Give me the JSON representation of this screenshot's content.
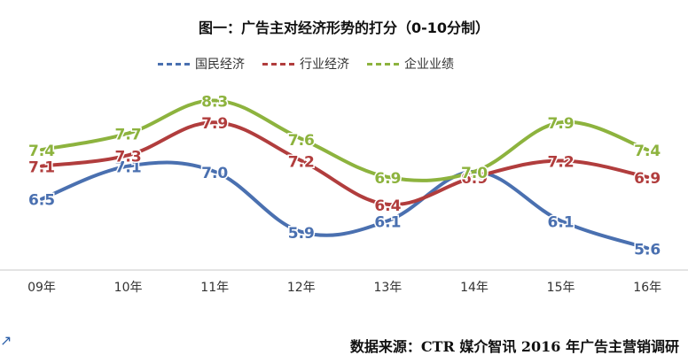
{
  "chart_data": {
    "type": "line",
    "title": "图一：广告主对经济形势的打分（0-10分制）",
    "categories": [
      "09年",
      "10年",
      "11年",
      "12年",
      "13年",
      "14年",
      "15年",
      "16年"
    ],
    "series": [
      {
        "name": "国民经济",
        "color": "#4a70b0",
        "values": [
          6.5,
          7.1,
          7.0,
          5.9,
          6.1,
          7.0,
          6.1,
          5.6
        ],
        "value_labels": [
          "6.5",
          "7.1",
          "7.0",
          "5.9",
          "6.1",
          "",
          "6.1",
          "5.6"
        ]
      },
      {
        "name": "行业经济",
        "color": "#b13d3d",
        "values": [
          7.1,
          7.3,
          7.9,
          7.2,
          6.4,
          6.9,
          7.2,
          6.9
        ],
        "value_labels": [
          "7.1",
          "7.3",
          "7.9",
          "7.2",
          "6.4",
          "6.9",
          "7.2",
          "6.9"
        ]
      },
      {
        "name": "企业业绩",
        "color": "#8db33e",
        "values": [
          7.4,
          7.7,
          8.3,
          7.6,
          6.9,
          7.0,
          7.9,
          7.4
        ],
        "value_labels": [
          "7.4",
          "7.7",
          "8.3",
          "7.6",
          "6.9",
          "7.0",
          "7.9",
          "7.4"
        ]
      }
    ],
    "ylim": [
      5.2,
      8.6
    ],
    "legend": "top"
  },
  "source": "数据来源：CTR 媒介智讯 2016 年广告主营销调研",
  "corner_glyph": "↗"
}
